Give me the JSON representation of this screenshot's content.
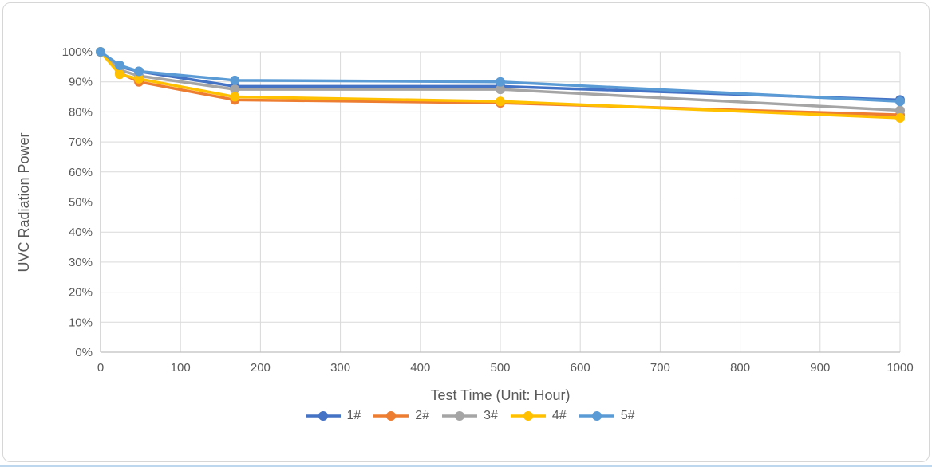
{
  "chart_data": {
    "type": "line",
    "title": "",
    "xlabel": "Test Time (Unit: Hour)",
    "ylabel": "UVC Radiation Power",
    "x": [
      0,
      24,
      48,
      168,
      500,
      1000
    ],
    "series": [
      {
        "name": "1#",
        "color": "#4472C4",
        "values": [
          100,
          95,
          93.5,
          88.5,
          88.5,
          84
        ]
      },
      {
        "name": "2#",
        "color": "#ED7D31",
        "values": [
          100,
          93,
          90,
          84,
          83,
          79
        ]
      },
      {
        "name": "3#",
        "color": "#A5A5A5",
        "values": [
          100,
          94,
          92,
          87.5,
          87.5,
          80.5
        ]
      },
      {
        "name": "4#",
        "color": "#FFC000",
        "values": [
          100,
          92.5,
          91,
          85,
          83.5,
          78
        ]
      },
      {
        "name": "5#",
        "color": "#5B9BD5",
        "values": [
          100,
          95.5,
          93.5,
          90.5,
          90,
          83.5
        ]
      }
    ],
    "xlim": [
      0,
      1000
    ],
    "ylim": [
      0,
      100
    ],
    "x_ticks": [
      0,
      100,
      200,
      300,
      400,
      500,
      600,
      700,
      800,
      900,
      1000
    ],
    "y_ticks": [
      0,
      10,
      20,
      30,
      40,
      50,
      60,
      70,
      80,
      90,
      100
    ],
    "y_tick_suffix": "%",
    "grid": true,
    "legend_position": "bottom"
  },
  "colors": {
    "grid": "#D9D9D9",
    "axis": "#BFBFBF",
    "tick_label": "#595959",
    "axis_title": "#595959",
    "frame_border": "#D6D6D6",
    "bottom_accent": "#BDD7EE"
  }
}
